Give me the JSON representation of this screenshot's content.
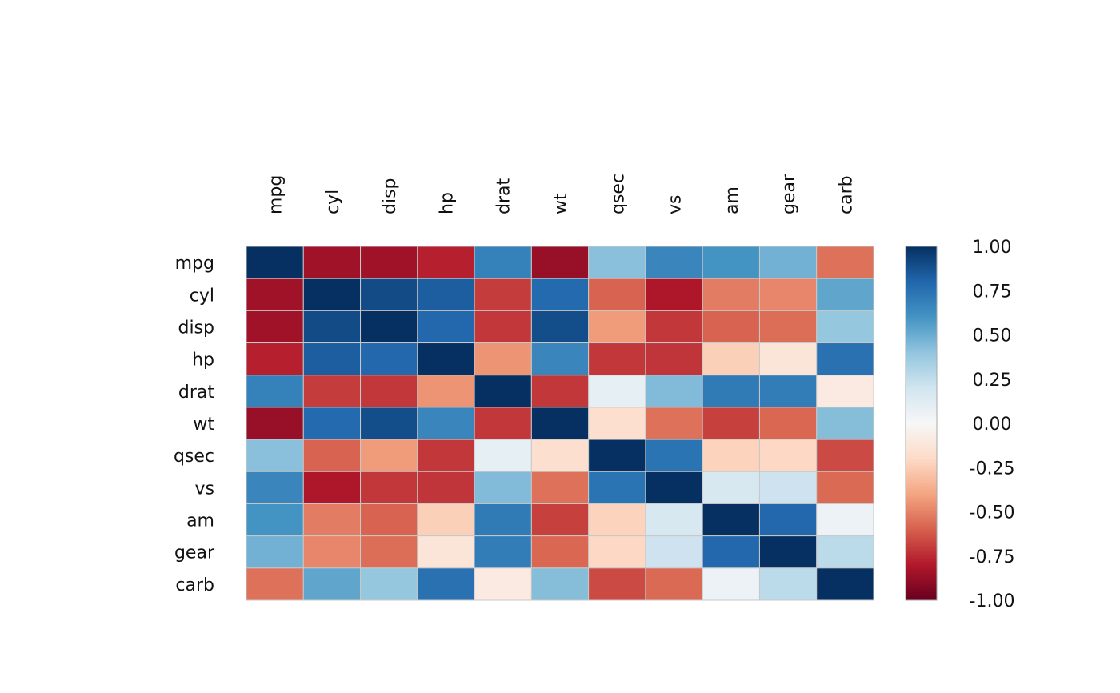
{
  "chart_data": {
    "type": "heatmap",
    "title": "",
    "variables": [
      "mpg",
      "cyl",
      "disp",
      "hp",
      "drat",
      "wt",
      "qsec",
      "vs",
      "am",
      "gear",
      "carb"
    ],
    "values": [
      [
        1.0,
        -0.85,
        -0.85,
        -0.78,
        0.68,
        -0.87,
        0.42,
        0.66,
        0.6,
        0.48,
        -0.55
      ],
      [
        -0.85,
        1.0,
        0.9,
        0.83,
        -0.7,
        0.78,
        -0.59,
        -0.81,
        -0.52,
        -0.49,
        0.53
      ],
      [
        -0.85,
        0.9,
        1.0,
        0.79,
        -0.71,
        0.89,
        -0.43,
        -0.71,
        -0.59,
        -0.56,
        0.39
      ],
      [
        -0.78,
        0.83,
        0.79,
        1.0,
        -0.45,
        0.66,
        -0.71,
        -0.72,
        -0.24,
        -0.13,
        0.75
      ],
      [
        0.68,
        -0.7,
        -0.71,
        -0.45,
        1.0,
        -0.71,
        0.09,
        0.44,
        0.71,
        0.7,
        -0.09
      ],
      [
        -0.87,
        0.78,
        0.89,
        0.66,
        -0.71,
        1.0,
        -0.17,
        -0.55,
        -0.69,
        -0.58,
        0.43
      ],
      [
        0.42,
        -0.59,
        -0.43,
        -0.71,
        0.09,
        -0.17,
        1.0,
        0.74,
        -0.23,
        -0.21,
        -0.66
      ],
      [
        0.66,
        -0.81,
        -0.71,
        -0.72,
        0.44,
        -0.55,
        0.74,
        1.0,
        0.17,
        0.21,
        -0.57
      ],
      [
        0.6,
        -0.52,
        -0.59,
        -0.24,
        0.71,
        -0.69,
        -0.23,
        0.17,
        1.0,
        0.79,
        0.06
      ],
      [
        0.48,
        -0.49,
        -0.56,
        -0.13,
        0.7,
        -0.58,
        -0.21,
        0.21,
        0.79,
        1.0,
        0.27
      ],
      [
        -0.55,
        0.53,
        0.39,
        0.75,
        -0.09,
        0.43,
        -0.66,
        -0.57,
        0.06,
        0.27,
        1.0
      ]
    ],
    "colorbar": {
      "range": [
        -1,
        1
      ],
      "ticks": [
        1.0,
        0.75,
        0.5,
        0.25,
        0.0,
        -0.25,
        -0.5,
        -0.75,
        -1.0
      ],
      "tick_labels": [
        "1.00",
        "0.75",
        "0.50",
        "0.25",
        "0.00",
        "-0.25",
        "-0.50",
        "-0.75",
        "-1.00"
      ],
      "colormap": [
        "#67001f",
        "#b2182b",
        "#d6604d",
        "#f4a582",
        "#fddbc7",
        "#f7f7f7",
        "#d1e5f0",
        "#92c5de",
        "#4393c3",
        "#2166ac",
        "#053061"
      ]
    }
  }
}
